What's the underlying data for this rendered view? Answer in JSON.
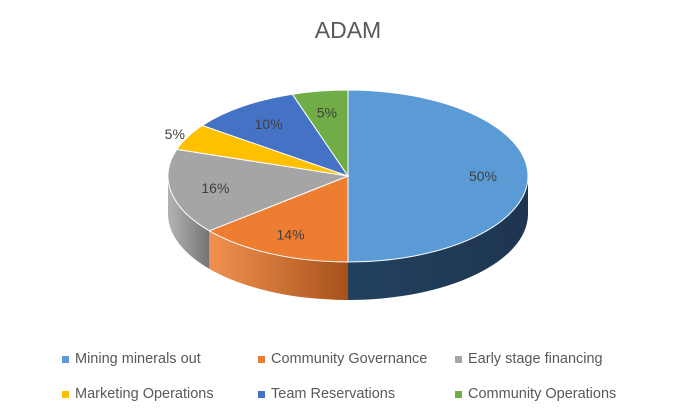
{
  "chart_data": {
    "type": "pie",
    "style": "3d",
    "title": "ADAM",
    "categories": [
      "Mining minerals out",
      "Community Governance",
      "Early stage financing",
      "Marketing Operations",
      "Team Reservations",
      "Community Operations"
    ],
    "values": [
      50,
      14,
      16,
      5,
      10,
      5
    ],
    "data_labels": [
      "50%",
      "14%",
      "16%",
      "5%",
      "10%",
      "5%"
    ],
    "label_placement": [
      "inside",
      "inside",
      "inside",
      "outside",
      "inside",
      "inside"
    ],
    "colors": [
      "#5B9BD5",
      "#ED7D31",
      "#A5A5A5",
      "#FFC000",
      "#4472C4",
      "#70AD47"
    ],
    "side_colors": [
      "#23415F",
      "#A4511B",
      "#737373",
      "#B38600",
      "#2F5089",
      "#4E7932"
    ],
    "start_angle": "top",
    "direction": "clockwise",
    "legend_position": "bottom"
  }
}
